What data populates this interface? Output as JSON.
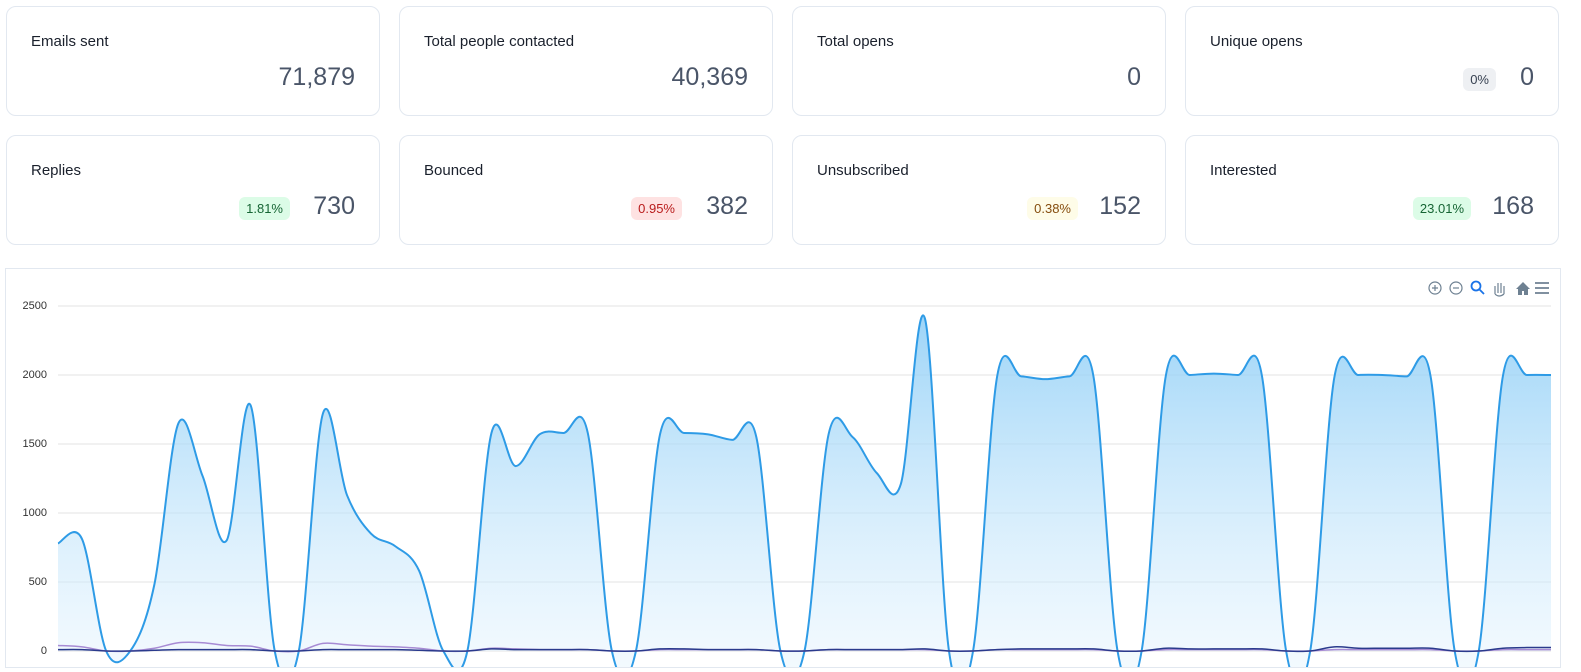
{
  "cards": [
    {
      "label": "Emails sent",
      "value": "71,879"
    },
    {
      "label": "Total people contacted",
      "value": "40,369"
    },
    {
      "label": "Total opens",
      "value": "0"
    },
    {
      "label": "Unique opens",
      "badge": "0%",
      "value": "0"
    },
    {
      "label": "Replies",
      "badge": "1.81%",
      "value": "730"
    },
    {
      "label": "Bounced",
      "badge": "0.95%",
      "value": "382"
    },
    {
      "label": "Unsubscribed",
      "badge": "0.38%",
      "value": "152"
    },
    {
      "label": "Interested",
      "badge": "23.01%",
      "value": "168"
    }
  ],
  "chart_data": {
    "type": "area",
    "categories": [
      null,
      null,
      null,
      null,
      null,
      null,
      null,
      null,
      null,
      null,
      null,
      null,
      null,
      null,
      null,
      null,
      null,
      null,
      null,
      null,
      null,
      null,
      null,
      null,
      null,
      null,
      null,
      null,
      null,
      null,
      null,
      null,
      null,
      null,
      null,
      null,
      null,
      null,
      null,
      null,
      null,
      null,
      null,
      null,
      null,
      null,
      null,
      null,
      null,
      null,
      null,
      null,
      null,
      null,
      null,
      null,
      null,
      null,
      null,
      null,
      null,
      null,
      null
    ],
    "series": [
      {
        "color": "#2e9be6",
        "values": [
          780,
          810,
          0,
          0,
          480,
          1650,
          1270,
          800,
          1780,
          0,
          0,
          1720,
          1130,
          850,
          760,
          580,
          0,
          0,
          1580,
          1340,
          1570,
          1580,
          1580,
          0,
          0,
          1570,
          1580,
          1570,
          1530,
          1550,
          0,
          0,
          1570,
          1550,
          1290,
          1210,
          2410,
          0,
          0,
          1990,
          1990,
          1970,
          1990,
          1990,
          0,
          0,
          1990,
          2000,
          2010,
          2000,
          1990,
          0,
          0,
          1980,
          2000,
          2000,
          1990,
          1990,
          0,
          0,
          1990,
          2000,
          2000
        ]
      },
      {
        "color": "#a78bd4",
        "values": [
          40,
          30,
          0,
          0,
          20,
          60,
          60,
          40,
          35,
          0,
          0,
          55,
          45,
          35,
          30,
          20,
          0,
          0,
          20,
          15,
          10,
          10,
          10,
          0,
          0,
          10,
          10,
          10,
          10,
          10,
          0,
          0,
          10,
          10,
          10,
          10,
          10,
          0,
          0,
          10,
          10,
          10,
          10,
          10,
          0,
          0,
          10,
          10,
          10,
          10,
          10,
          0,
          0,
          10,
          10,
          10,
          10,
          10,
          0,
          0,
          10,
          10,
          10
        ]
      },
      {
        "color": "#2a3a8c",
        "values": [
          10,
          10,
          0,
          0,
          5,
          10,
          10,
          10,
          10,
          0,
          0,
          10,
          10,
          10,
          10,
          5,
          0,
          0,
          15,
          10,
          10,
          10,
          10,
          0,
          0,
          15,
          15,
          10,
          10,
          10,
          0,
          0,
          10,
          10,
          10,
          10,
          15,
          0,
          0,
          10,
          15,
          15,
          15,
          15,
          0,
          0,
          20,
          15,
          15,
          15,
          15,
          0,
          0,
          30,
          20,
          20,
          20,
          20,
          0,
          0,
          20,
          25,
          25
        ]
      }
    ],
    "ylim": [
      0,
      2500
    ],
    "yticks": [
      0,
      500,
      1000,
      1500,
      2000,
      2500
    ],
    "grid": true
  }
}
